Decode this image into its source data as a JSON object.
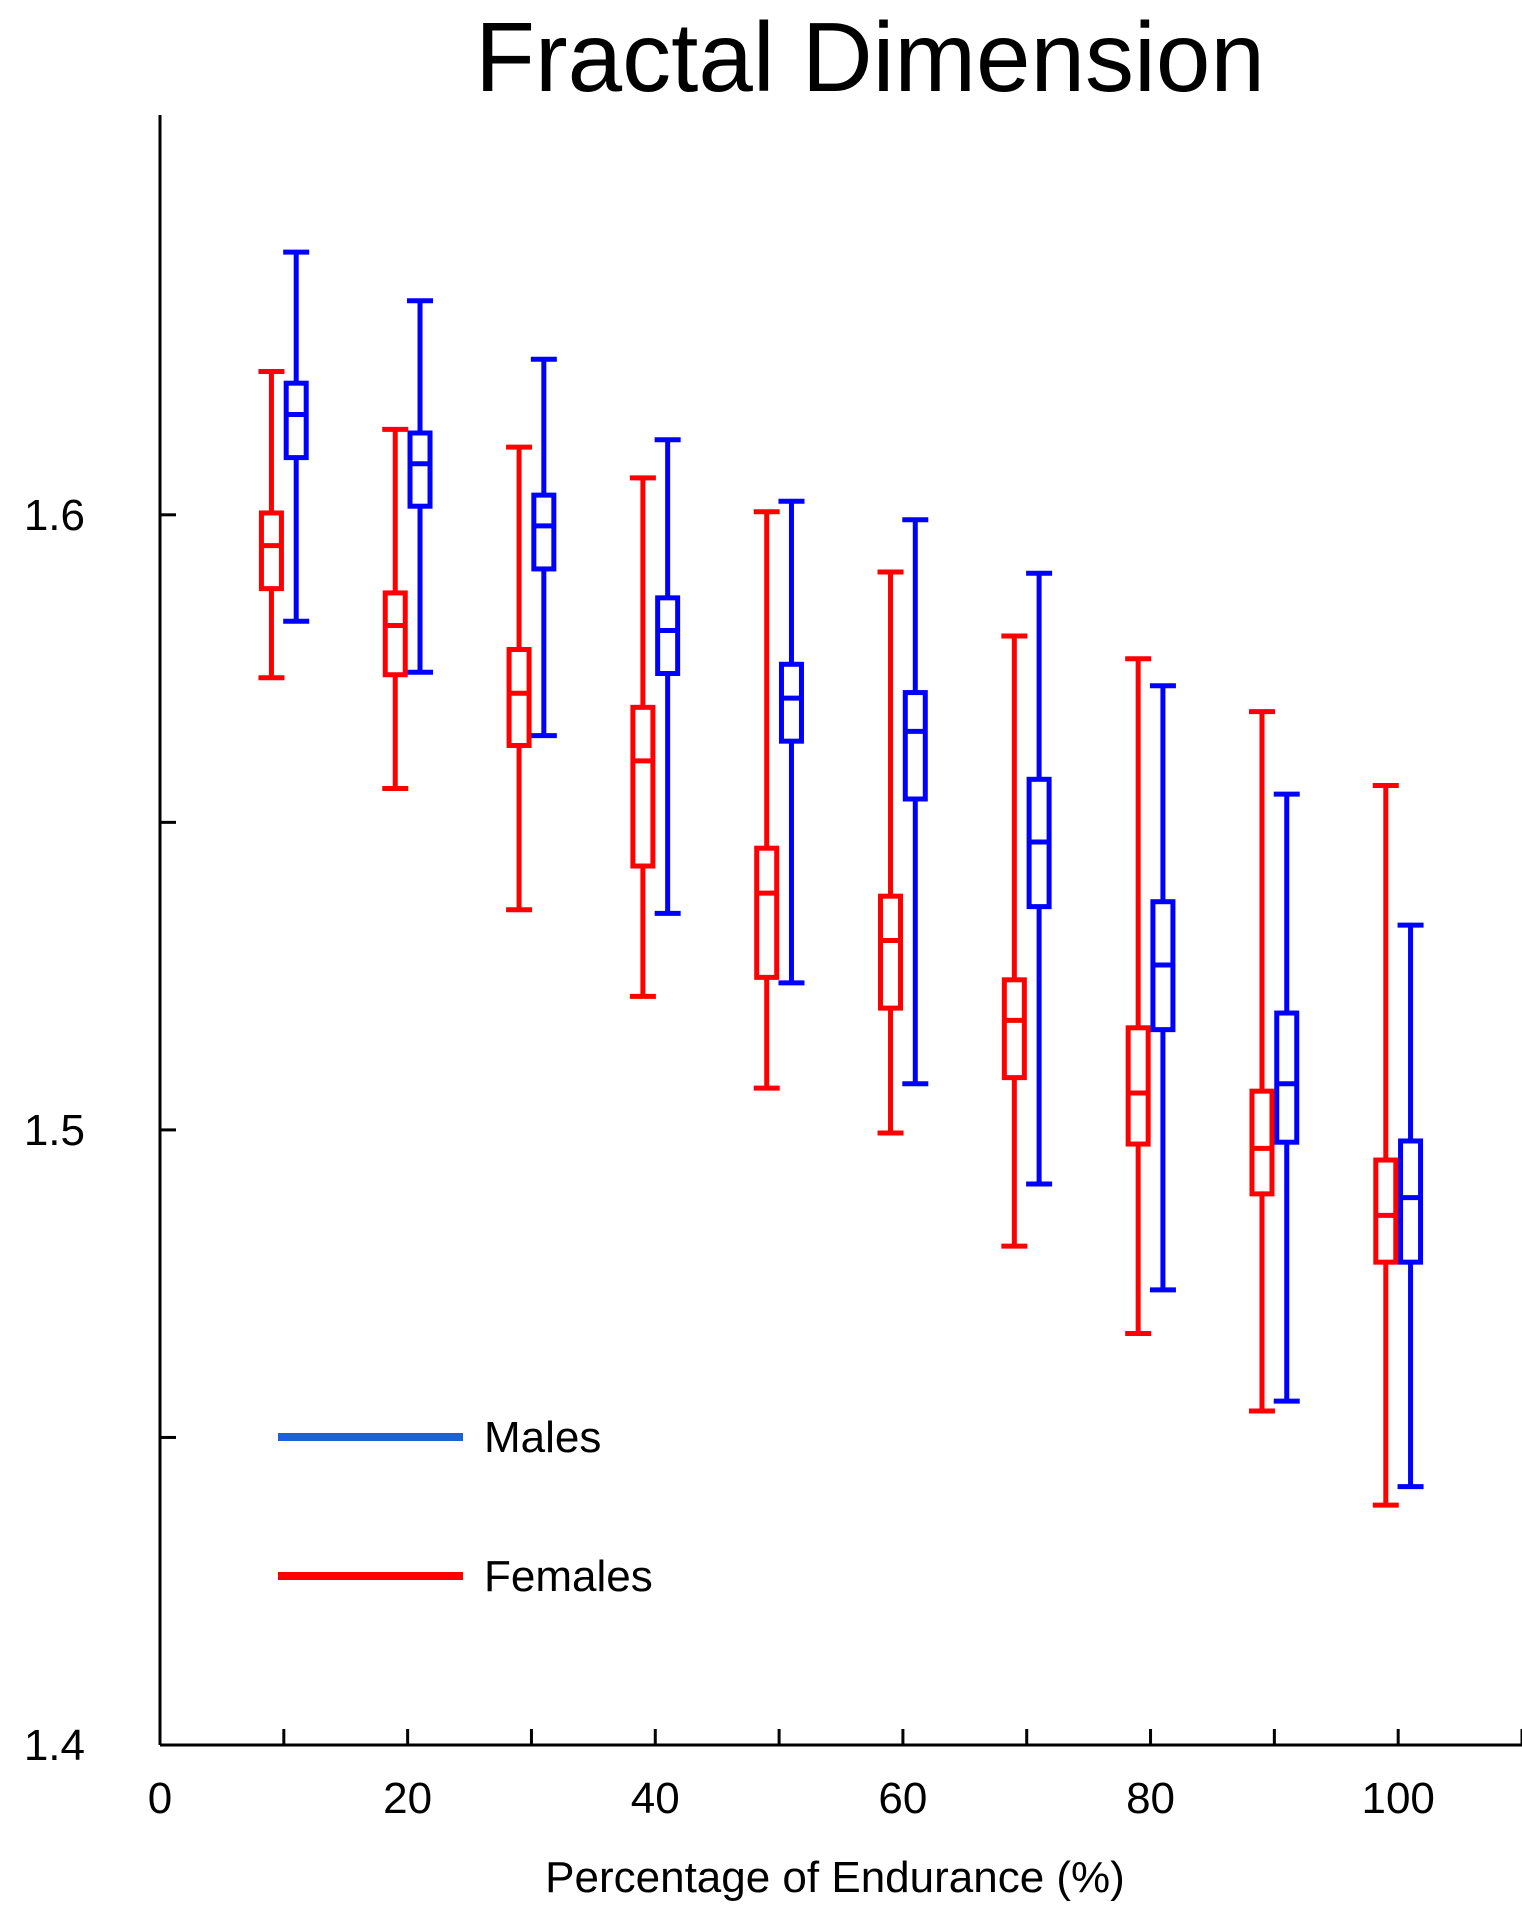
{
  "chart_data": {
    "type": "boxplot",
    "title": "Fractal Dimension",
    "xlabel": "Percentage of Endurance (%)",
    "ylabel": "",
    "xlim": [
      0,
      110
    ],
    "ylim": [
      1.4,
      1.665
    ],
    "x_ticks": [
      0,
      10,
      20,
      30,
      40,
      50,
      60,
      70,
      80,
      90,
      100,
      110
    ],
    "x_tick_labels": [
      {
        "value": 0,
        "label": "0"
      },
      {
        "value": 20,
        "label": "20"
      },
      {
        "value": 40,
        "label": "40"
      },
      {
        "value": 60,
        "label": "60"
      },
      {
        "value": 80,
        "label": "80"
      },
      {
        "value": 100,
        "label": "100"
      }
    ],
    "y_ticks": [
      1.4,
      1.45,
      1.5,
      1.55,
      1.6
    ],
    "y_tick_labels": [
      {
        "value": 1.4,
        "label": "1.4"
      },
      {
        "value": 1.5,
        "label": "1.5"
      },
      {
        "value": 1.6,
        "label": "1.6"
      }
    ],
    "legend_position": "bottom-left",
    "series": [
      {
        "name": "Males",
        "color": "#0000ff",
        "legend_color": "#1f5fd8",
        "boxes": [
          {
            "x": 11,
            "min": 1.5827,
            "q1": 1.6093,
            "median": 1.6163,
            "q3": 1.6214,
            "max": 1.6427
          },
          {
            "x": 21,
            "min": 1.5744,
            "q1": 1.6014,
            "median": 1.6083,
            "q3": 1.6133,
            "max": 1.6348
          },
          {
            "x": 31,
            "min": 1.5641,
            "q1": 1.5912,
            "median": 1.5982,
            "q3": 1.6032,
            "max": 1.6253
          },
          {
            "x": 41,
            "min": 1.5352,
            "q1": 1.5742,
            "median": 1.5812,
            "q3": 1.5865,
            "max": 1.6122
          },
          {
            "x": 51,
            "min": 1.5239,
            "q1": 1.5632,
            "median": 1.5702,
            "q3": 1.5757,
            "max": 1.6022
          },
          {
            "x": 61,
            "min": 1.5075,
            "q1": 1.5538,
            "median": 1.5648,
            "q3": 1.5711,
            "max": 1.5992
          },
          {
            "x": 71,
            "min": 1.4912,
            "q1": 1.5363,
            "median": 1.5468,
            "q3": 1.557,
            "max": 1.5905
          },
          {
            "x": 81,
            "min": 1.474,
            "q1": 1.5163,
            "median": 1.5268,
            "q3": 1.5371,
            "max": 1.5722
          },
          {
            "x": 91,
            "min": 1.4559,
            "q1": 1.498,
            "median": 1.5075,
            "q3": 1.519,
            "max": 1.5546
          },
          {
            "x": 101,
            "min": 1.442,
            "q1": 1.4785,
            "median": 1.489,
            "q3": 1.4982,
            "max": 1.5333
          }
        ]
      },
      {
        "name": "Females",
        "color": "#ff0000",
        "legend_color": "#ff0000",
        "boxes": [
          {
            "x": 9,
            "min": 1.5735,
            "q1": 1.588,
            "median": 1.595,
            "q3": 1.6003,
            "max": 1.6233
          },
          {
            "x": 19,
            "min": 1.5555,
            "q1": 1.574,
            "median": 1.582,
            "q3": 1.5873,
            "max": 1.6139
          },
          {
            "x": 29,
            "min": 1.5358,
            "q1": 1.5625,
            "median": 1.571,
            "q3": 1.5781,
            "max": 1.611
          },
          {
            "x": 39,
            "min": 1.5217,
            "q1": 1.5429,
            "median": 1.56,
            "q3": 1.5687,
            "max": 1.606
          },
          {
            "x": 49,
            "min": 1.5068,
            "q1": 1.5248,
            "median": 1.5385,
            "q3": 1.5458,
            "max": 1.6005
          },
          {
            "x": 59,
            "min": 1.4995,
            "q1": 1.5198,
            "median": 1.5308,
            "q3": 1.538,
            "max": 1.5907
          },
          {
            "x": 69,
            "min": 1.4811,
            "q1": 1.5085,
            "median": 1.5178,
            "q3": 1.5244,
            "max": 1.5803
          },
          {
            "x": 79,
            "min": 1.4669,
            "q1": 1.4977,
            "median": 1.506,
            "q3": 1.5166,
            "max": 1.5766
          },
          {
            "x": 89,
            "min": 1.4543,
            "q1": 1.4896,
            "median": 1.497,
            "q3": 1.5063,
            "max": 1.568
          },
          {
            "x": 99,
            "min": 1.439,
            "q1": 1.4785,
            "median": 1.4861,
            "q3": 1.4951,
            "max": 1.556
          }
        ]
      }
    ]
  }
}
